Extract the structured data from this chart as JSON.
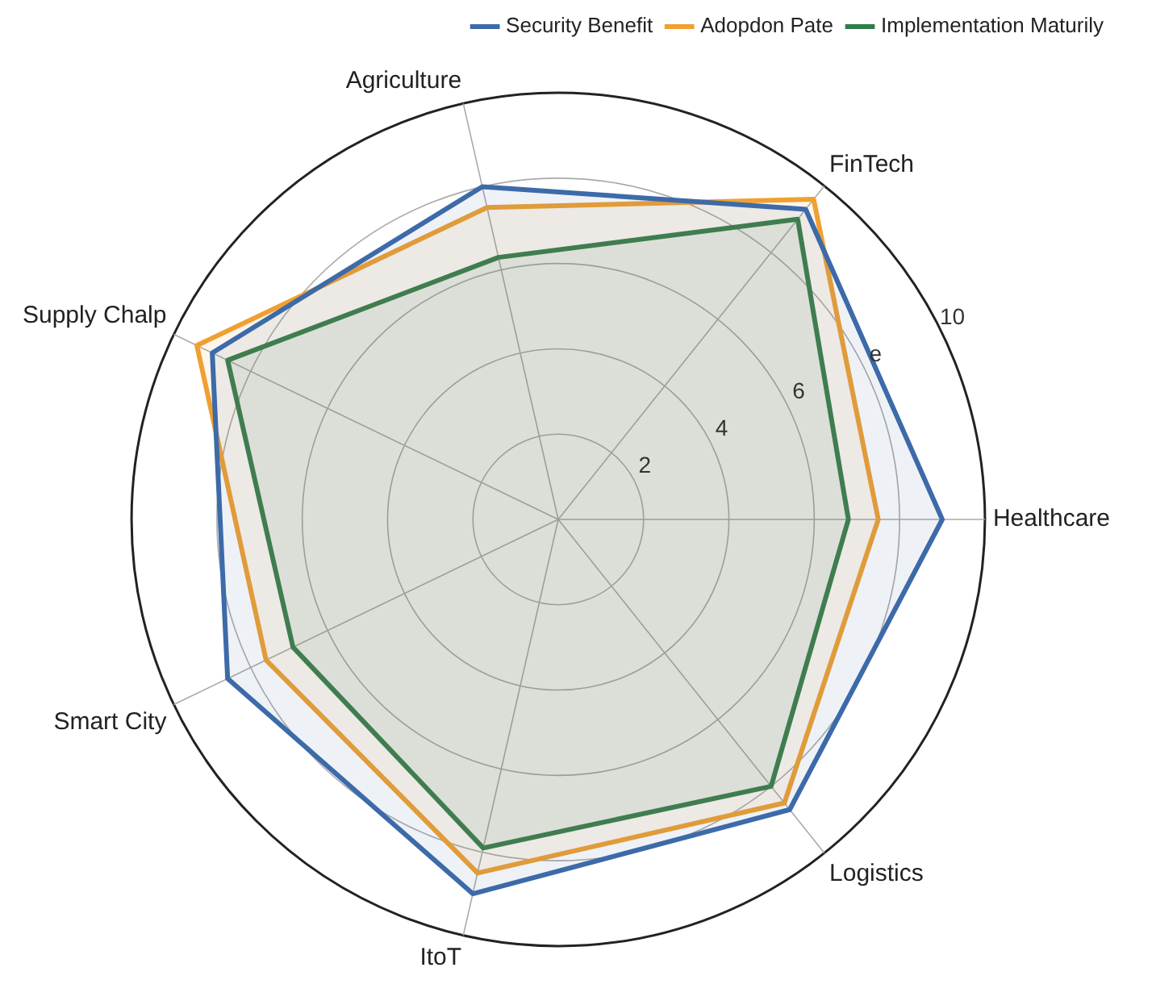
{
  "chart_data": {
    "type": "radar",
    "categories": [
      "FinTech",
      "Healthcare",
      "Logistics",
      "ItoT",
      "Smart City",
      "Supply Chalp",
      "Agriculture"
    ],
    "series": [
      {
        "name": "Security Benefit",
        "color": "#3d6aa8",
        "values": [
          9.3,
          9.0,
          8.7,
          9.0,
          8.6,
          9.0,
          8.0
        ]
      },
      {
        "name": "Adopdon Pate",
        "color": "#f0a030",
        "values": [
          9.6,
          7.5,
          8.5,
          8.5,
          7.6,
          9.4,
          7.5
        ]
      },
      {
        "name": "Implementation Maturily",
        "color": "#2e7d4a",
        "values": [
          9.0,
          6.8,
          8.0,
          7.9,
          6.9,
          8.6,
          6.3
        ]
      }
    ],
    "ylim": [
      0,
      10
    ],
    "yticks": [
      2,
      4,
      6,
      {
        "value": 8,
        "label": "e"
      },
      10
    ],
    "grid": true,
    "legend": "top right",
    "marker": "none"
  }
}
